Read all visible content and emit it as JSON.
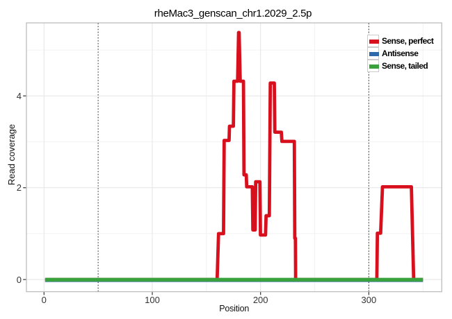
{
  "title": "rheMac3_genscan_chr1.2029_2.5p",
  "axes": {
    "x": {
      "label": "Position",
      "tick_labels": [
        "0",
        "100",
        "200",
        "300"
      ],
      "tick_values": [
        0,
        100,
        200,
        300
      ],
      "minor_tick_values": [
        50,
        150,
        250,
        350
      ]
    },
    "y": {
      "label": "Read coverage",
      "tick_labels": [
        "0",
        "2",
        "4"
      ],
      "tick_values": [
        0,
        2,
        4
      ],
      "minor_tick_values": [
        1,
        3,
        5
      ]
    }
  },
  "legend": {
    "entries": [
      {
        "label": "Sense, perfect",
        "color": "#d8101e"
      },
      {
        "label": "Antisense",
        "color": "#2d6aac"
      },
      {
        "label": "Sense, tailed",
        "color": "#3aa23c"
      }
    ]
  },
  "chart_data": {
    "type": "line",
    "title": "rheMac3_genscan_chr1.2029_2.5p",
    "xlabel": "Position",
    "ylabel": "Read coverage",
    "xlim": [
      -16.5,
      367.5
    ],
    "ylim": [
      -0.27,
      5.6
    ],
    "grid": "on",
    "legend_position": "inside-top-right",
    "vlines_dotted_x": [
      50,
      300
    ],
    "series": [
      {
        "name": "Sense, perfect",
        "color": "#d8101e",
        "width": 4.8,
        "points": [
          [
            1,
            0
          ],
          [
            159.9,
            0
          ],
          [
            161.2,
            1.0
          ],
          [
            165.8,
            1.0
          ],
          [
            166.4,
            3.03
          ],
          [
            170.9,
            3.03
          ],
          [
            171.3,
            3.34
          ],
          [
            174.9,
            3.34
          ],
          [
            175.4,
            4.32
          ],
          [
            178.8,
            4.32
          ],
          [
            179.7,
            5.38
          ],
          [
            180.2,
            5.38
          ],
          [
            181.2,
            4.32
          ],
          [
            184.2,
            4.32
          ],
          [
            184.7,
            2.28
          ],
          [
            186.8,
            2.28
          ],
          [
            187.2,
            2.02
          ],
          [
            192.4,
            2.02
          ],
          [
            192.9,
            1.08
          ],
          [
            195.0,
            1.08
          ],
          [
            195.5,
            2.13
          ],
          [
            199.4,
            2.13
          ],
          [
            199.9,
            0.97
          ],
          [
            204.6,
            0.97
          ],
          [
            205.1,
            1.39
          ],
          [
            208.1,
            1.39
          ],
          [
            209.0,
            4.28
          ],
          [
            212.7,
            4.28
          ],
          [
            213.2,
            3.21
          ],
          [
            219.2,
            3.21
          ],
          [
            219.7,
            3.01
          ],
          [
            231.2,
            3.01
          ],
          [
            231.6,
            0.9
          ],
          [
            232.2,
            0.9
          ],
          [
            232.4,
            0
          ],
          [
            307.4,
            0
          ],
          [
            307.9,
            1.01
          ],
          [
            310.9,
            1.01
          ],
          [
            312.6,
            2.02
          ],
          [
            339.3,
            2.02
          ],
          [
            341.4,
            0
          ],
          [
            350,
            0
          ]
        ]
      },
      {
        "name": "Antisense",
        "color": "#2d6aac",
        "width": 5.0,
        "points": [
          [
            1,
            0
          ],
          [
            350,
            0
          ]
        ]
      },
      {
        "name": "Sense, tailed",
        "color": "#3aa23c",
        "width": 5.4,
        "points": [
          [
            1,
            0
          ],
          [
            350,
            0
          ]
        ]
      }
    ]
  }
}
